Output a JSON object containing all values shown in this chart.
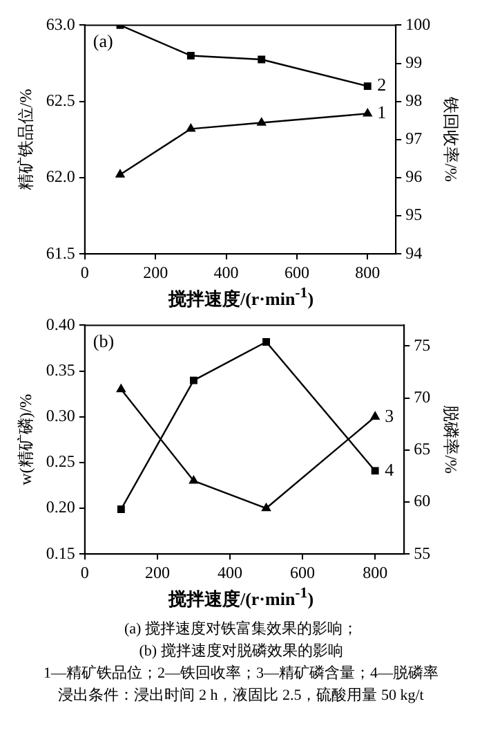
{
  "chart_data": [
    {
      "type": "line",
      "xlabel": "搅拌速度/(r·min$^{-1}$)",
      "ylabel": "精矿铁品位/%",
      "y2label": "铁回收率/%",
      "x": [
        100,
        300,
        500,
        800
      ],
      "xlim": [
        0,
        880
      ],
      "xticks": [
        0,
        200,
        400,
        600,
        800
      ],
      "ylim": [
        61.5,
        63.0
      ],
      "yticks": [
        61.5,
        {
          "value": 62,
          "label": "62.0"
        },
        62.5,
        {
          "value": 63,
          "label": "63.0"
        }
      ],
      "y2lim": [
        94,
        100
      ],
      "y2ticks": [
        94,
        95,
        96,
        97,
        98,
        99,
        100
      ],
      "grid": false,
      "legend": false,
      "annotations": [
        "(a)"
      ],
      "series": [
        {
          "name": "1",
          "color": "#000000",
          "marker": "triangle",
          "values": [
            62.02,
            62.32,
            62.36,
            62.42
          ]
        },
        {
          "name": "2",
          "color": "#000000",
          "marker": "square",
          "axis": "y2",
          "values": [
            100,
            99.2,
            99.1,
            98.4
          ]
        }
      ]
    },
    {
      "type": "line",
      "xlabel": "搅拌速度/(r·min$^{-1}$)",
      "ylabel": "w(精矿磷)/%",
      "y2label": "脱磷率/%",
      "x": [
        100,
        300,
        500,
        800
      ],
      "xlim": [
        0,
        880
      ],
      "xticks": [
        0,
        200,
        400,
        600,
        800
      ],
      "ylim": [
        0.15,
        0.4
      ],
      "yticks": [
        0.15,
        {
          "value": 0.2,
          "label": "0.20"
        },
        0.25,
        {
          "value": 0.3,
          "label": "0.30"
        },
        0.35,
        {
          "value": 0.4,
          "label": "0.40"
        }
      ],
      "y2lim": [
        55,
        77
      ],
      "y2ticks": [
        55,
        60,
        65,
        70,
        75
      ],
      "grid": false,
      "legend": false,
      "annotations": [
        "(b)",
        "(a) 搅拌速度对铁富集效果的影响；",
        "(b) 搅拌速度对脱磷效果的影响",
        "1—精矿铁品位；2—铁回收率；3—精矿磷含量；4—脱磷率",
        "浸出条件：浸出时间 2 h，液固比 2.5，硫酸用量 50 kg/t"
      ],
      "series": [
        {
          "name": "3",
          "color": "#000000",
          "marker": "triangle",
          "values": [
            0.33,
            0.23,
            0.2,
            0.3
          ]
        },
        {
          "name": "4",
          "color": "#000000",
          "marker": "square",
          "axis": "y2",
          "values": [
            59.3,
            71.7,
            75.4,
            63.0
          ]
        }
      ]
    }
  ]
}
